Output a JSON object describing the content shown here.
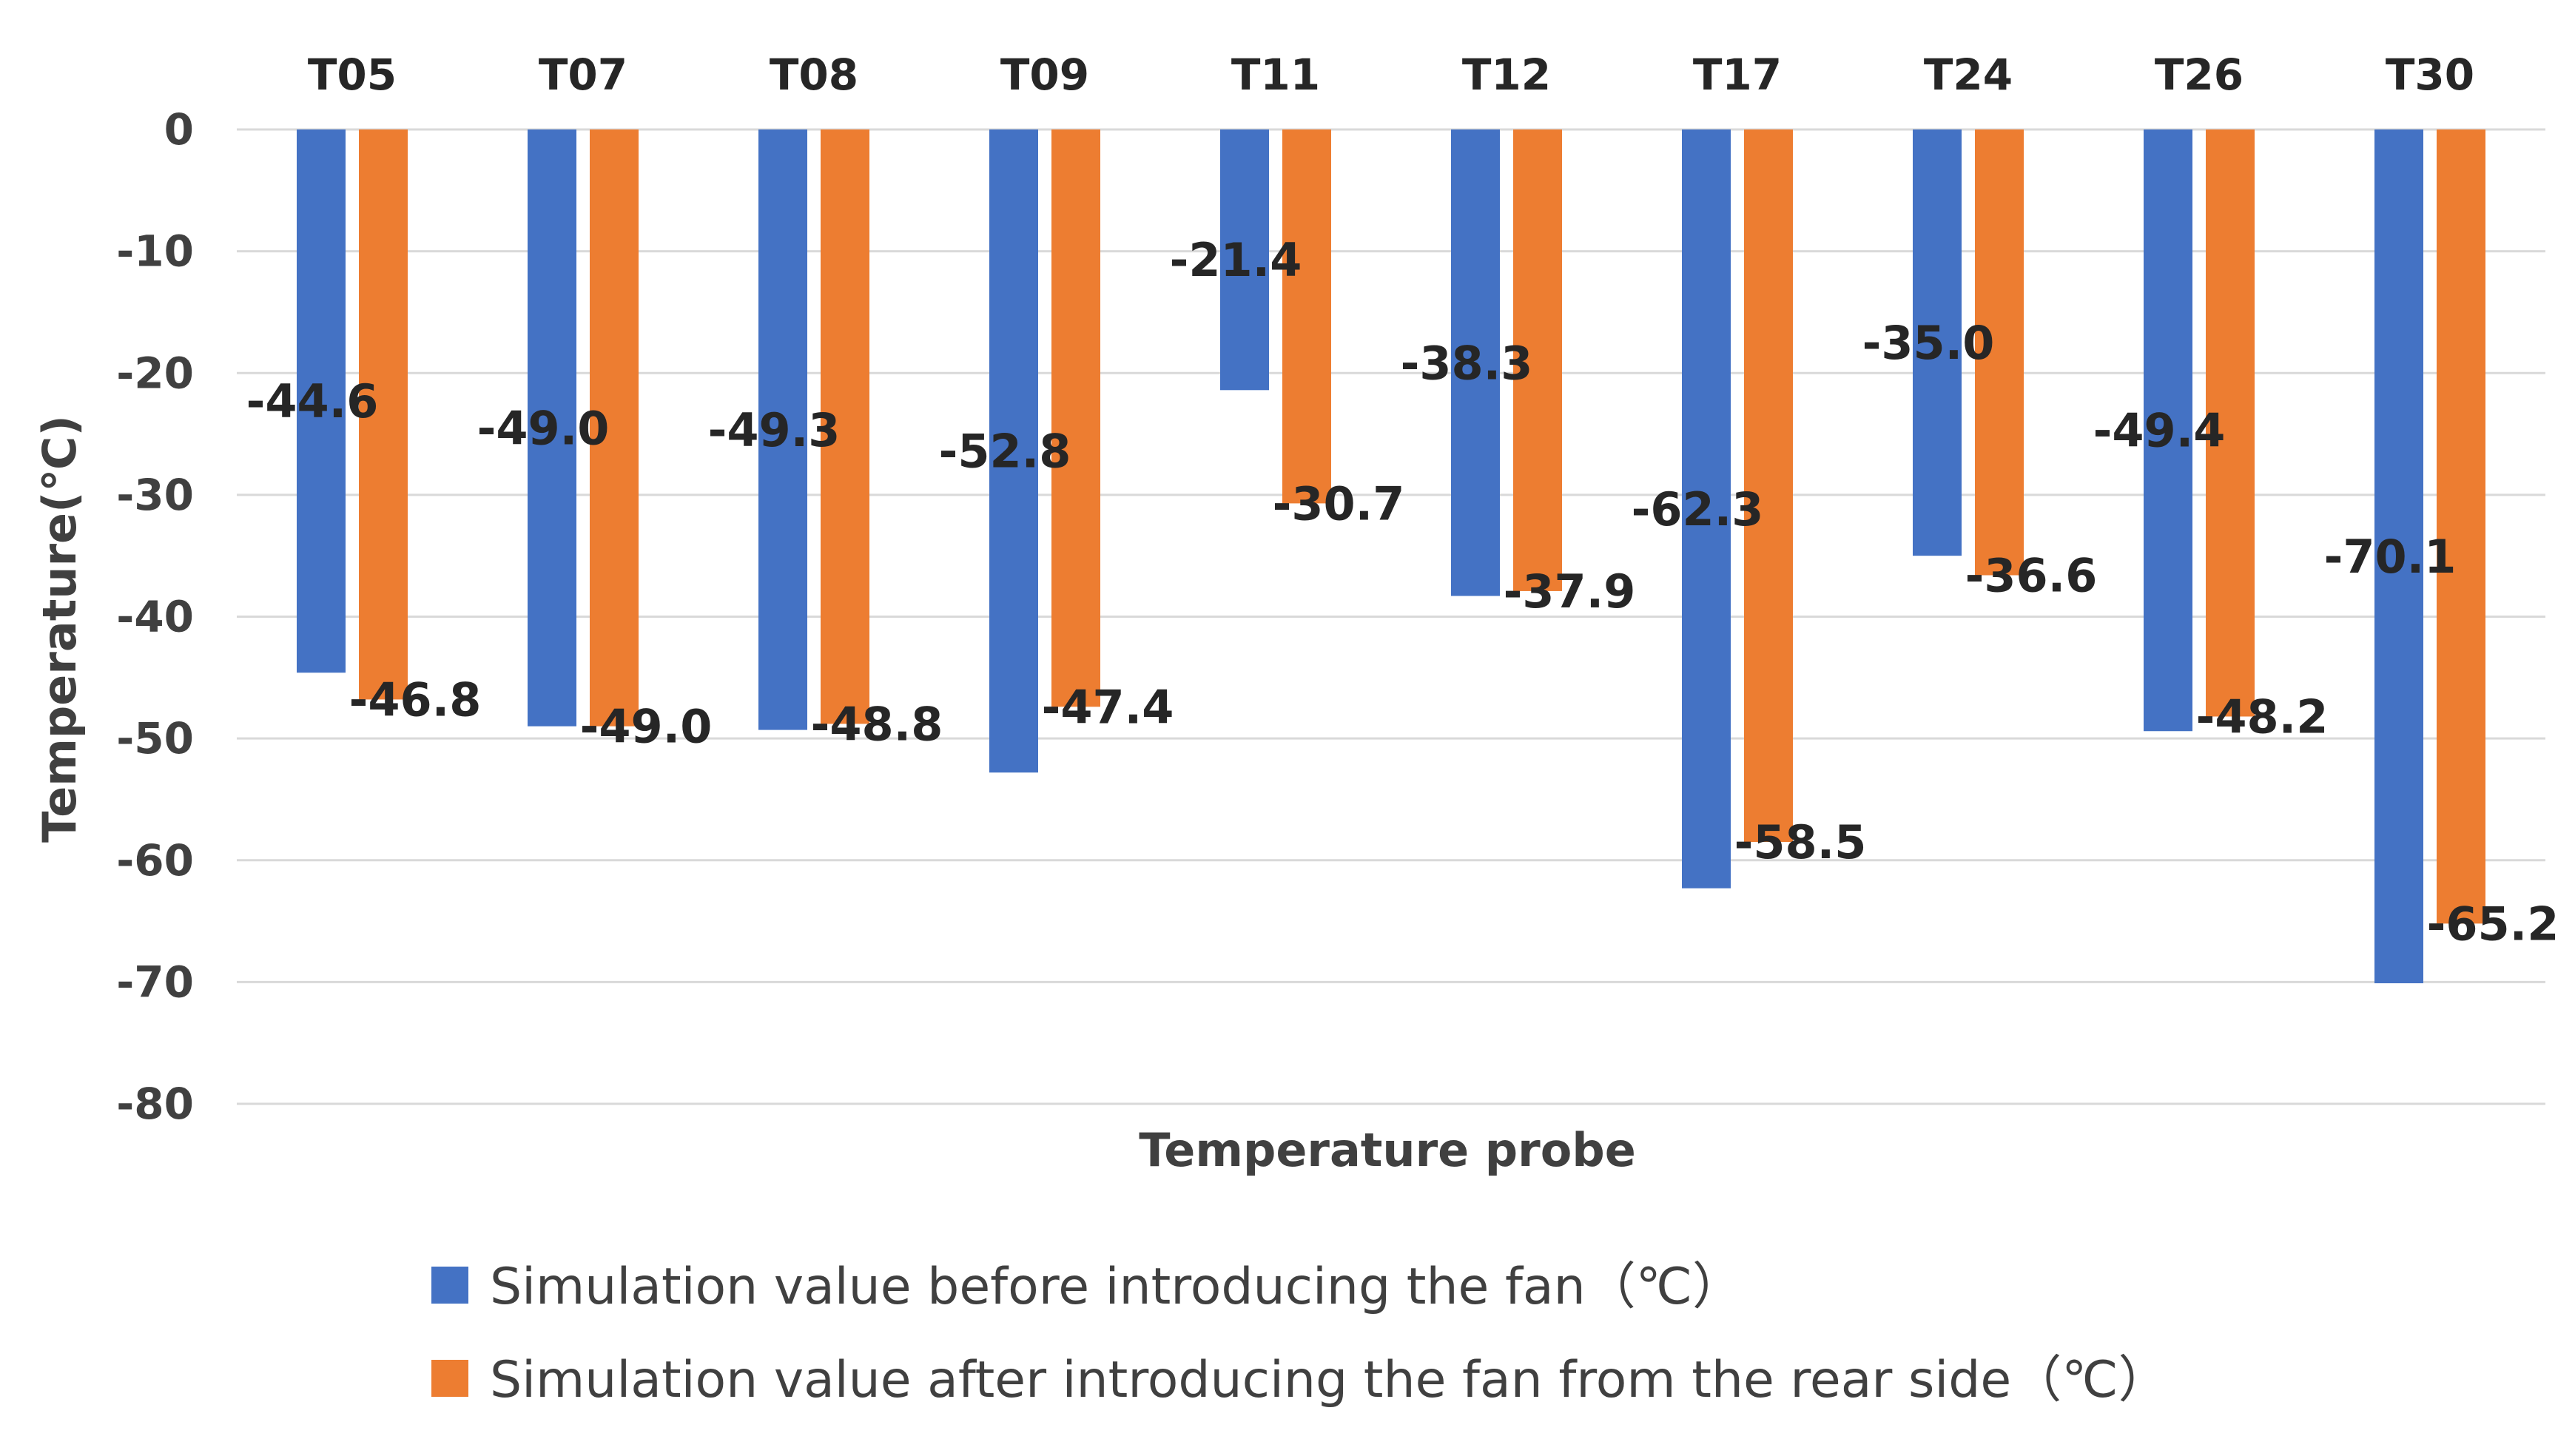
{
  "chart_data": {
    "type": "bar",
    "title": "",
    "xlabel": "Temperature probe",
    "ylabel": "Temperature(℃)",
    "categories": [
      "T05",
      "T07",
      "T08",
      "T09",
      "T11",
      "T12",
      "T17",
      "T24",
      "T26",
      "T30"
    ],
    "series": [
      {
        "name": "Simulation value before introducing the fan（℃）",
        "color": "#4472C4",
        "values": [
          -44.6,
          -49.0,
          -49.3,
          -52.8,
          -21.4,
          -38.3,
          -62.3,
          -35.0,
          -49.4,
          -70.1
        ],
        "labels": [
          "-44.6",
          "-49.0",
          "-49.3",
          "-52.8",
          "-21.4",
          "-38.3",
          "-62.3",
          "-35.0",
          "-49.4",
          "-70.1"
        ]
      },
      {
        "name": "Simulation value after introducing the fan from the rear side（℃）",
        "color": "#ED7D31",
        "values": [
          -46.8,
          -49.0,
          -48.8,
          -47.4,
          -30.7,
          -37.9,
          -58.5,
          -36.6,
          -48.2,
          -65.2
        ],
        "labels": [
          "-46.8",
          "-49.0",
          "-48.8",
          "-47.4",
          "-30.7",
          "-37.9",
          "-58.5",
          "-36.6",
          "-48.2",
          "-65.2"
        ]
      }
    ],
    "ylim": [
      -80,
      0
    ],
    "yticks": [
      0,
      -10,
      -20,
      -30,
      -40,
      -50,
      -60,
      -70,
      -80
    ],
    "ytick_labels": [
      "0",
      "-10",
      "-20",
      "-30",
      "-40",
      "-50",
      "-60",
      "-70",
      "-80"
    ],
    "grid": true,
    "legend_position": "bottom",
    "category_labels_position": "top"
  }
}
